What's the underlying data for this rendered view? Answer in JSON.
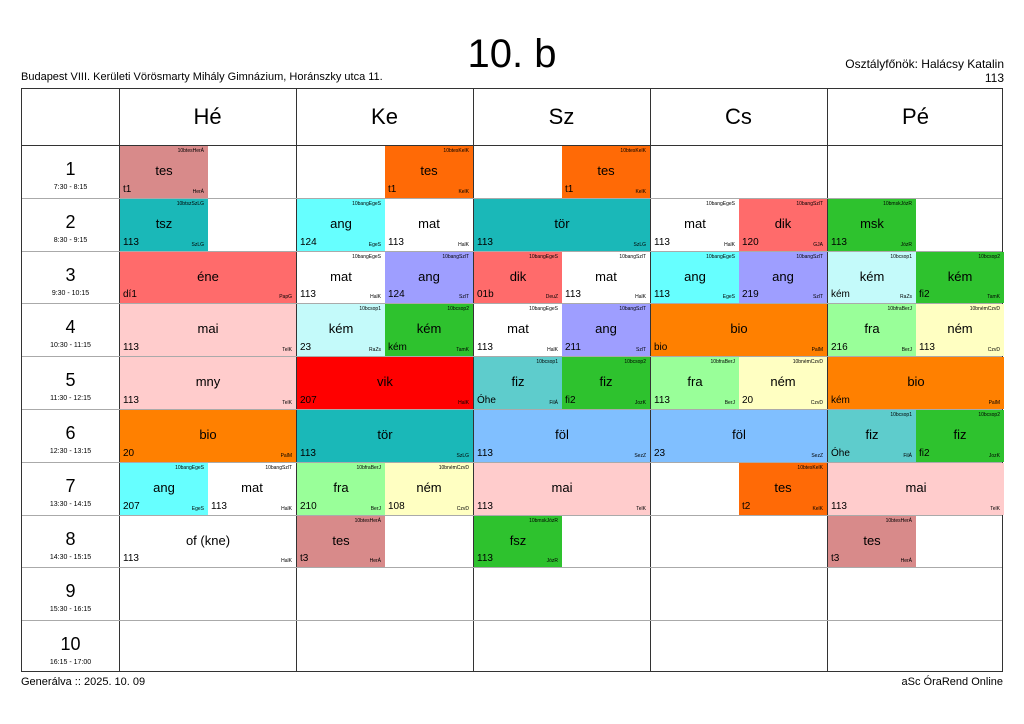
{
  "header": {
    "title": "10. b",
    "school": "Budapest VIII. Kerületi Vörösmarty Mihály Gimnázium, Horánszky utca 11.",
    "head_teacher": "Osztályfőnök: Halácsy Katalin",
    "room": "113"
  },
  "days": [
    "Hé",
    "Ke",
    "Sz",
    "Cs",
    "Pé"
  ],
  "periods": [
    {
      "num": "1",
      "time": "7:30 - 8:15"
    },
    {
      "num": "2",
      "time": "8:30 - 9:15"
    },
    {
      "num": "3",
      "time": "9:30 - 10:15"
    },
    {
      "num": "4",
      "time": "10:30 - 11:15"
    },
    {
      "num": "5",
      "time": "11:30 - 12:15"
    },
    {
      "num": "6",
      "time": "12:30 - 13:15"
    },
    {
      "num": "7",
      "time": "13:30 - 14:15"
    },
    {
      "num": "8",
      "time": "14:30 - 15:15"
    },
    {
      "num": "9",
      "time": "15:30 - 16:15"
    },
    {
      "num": "10",
      "time": "16:15 - 17:00"
    }
  ],
  "lessons": [
    {
      "day": 0,
      "period": 0,
      "half": "L",
      "span": 1,
      "subject": "tes",
      "room": "t1",
      "teacher": "HerÁ",
      "group": "10btesHerÁ",
      "color": "#d88a8a"
    },
    {
      "day": 1,
      "period": 0,
      "half": "R",
      "span": 1,
      "subject": "tes",
      "room": "t1",
      "teacher": "KelK",
      "group": "10btesKelK",
      "color": "#ff6a06"
    },
    {
      "day": 2,
      "period": 0,
      "half": "R",
      "span": 1,
      "subject": "tes",
      "room": "t1",
      "teacher": "KelK",
      "group": "10btesKelK",
      "color": "#ff6a06"
    },
    {
      "day": 0,
      "period": 1,
      "half": "L",
      "span": 1,
      "subject": "tsz",
      "room": "113",
      "teacher": "SzLG",
      "group": "10btszSzLG",
      "color": "#1ab8b8"
    },
    {
      "day": 1,
      "period": 1,
      "half": "L",
      "span": 1,
      "subject": "ang",
      "room": "124",
      "teacher": "EgeS",
      "group": "10bangEgeS",
      "color": "#66ffff"
    },
    {
      "day": 1,
      "period": 1,
      "half": "R",
      "span": 1,
      "subject": "mat",
      "room": "113",
      "teacher": "HalK",
      "group": "",
      "color": "#ffffff"
    },
    {
      "day": 2,
      "period": 1,
      "half": "F",
      "span": 1,
      "subject": "tör",
      "room": "113",
      "teacher": "SzLG",
      "group": "",
      "color": "#1ab8b8"
    },
    {
      "day": 3,
      "period": 1,
      "half": "L",
      "span": 1,
      "subject": "mat",
      "room": "113",
      "teacher": "HalK",
      "group": "10bangEgeS",
      "color": "#ffffff"
    },
    {
      "day": 3,
      "period": 1,
      "half": "R",
      "span": 1,
      "subject": "dik",
      "room": "120",
      "teacher": "GJA",
      "group": "10bangSzlT",
      "color": "#ff6b6b"
    },
    {
      "day": 4,
      "period": 1,
      "half": "L",
      "span": 1,
      "subject": "msk",
      "room": "113",
      "teacher": "JózR",
      "group": "10bmskJózR",
      "color": "#2ec22e"
    },
    {
      "day": 0,
      "period": 2,
      "half": "F",
      "span": 1,
      "subject": "éne",
      "room": "dí1",
      "teacher": "PapG",
      "group": "",
      "color": "#ff6b6b"
    },
    {
      "day": 1,
      "period": 2,
      "half": "L",
      "span": 1,
      "subject": "mat",
      "room": "113",
      "teacher": "HalK",
      "group": "10bangEgeS",
      "color": "#ffffff"
    },
    {
      "day": 1,
      "period": 2,
      "half": "R",
      "span": 1,
      "subject": "ang",
      "room": "124",
      "teacher": "SzlT",
      "group": "10bangSzlT",
      "color": "#9e9eff"
    },
    {
      "day": 2,
      "period": 2,
      "half": "L",
      "span": 1,
      "subject": "dik",
      "room": "01b",
      "teacher": "DeuZ",
      "group": "10bangEgeS",
      "color": "#ff6b6b"
    },
    {
      "day": 2,
      "period": 2,
      "half": "R",
      "span": 1,
      "subject": "mat",
      "room": "113",
      "teacher": "HalK",
      "group": "10bangSzlT",
      "color": "#ffffff"
    },
    {
      "day": 3,
      "period": 2,
      "half": "L",
      "span": 1,
      "subject": "ang",
      "room": "113",
      "teacher": "EgeS",
      "group": "10bangEgeS",
      "color": "#66ffff"
    },
    {
      "day": 3,
      "period": 2,
      "half": "R",
      "span": 1,
      "subject": "ang",
      "room": "219",
      "teacher": "SzlT",
      "group": "10bangSzlT",
      "color": "#9e9eff"
    },
    {
      "day": 4,
      "period": 2,
      "half": "L",
      "span": 1,
      "subject": "kém",
      "room": "kém",
      "teacher": "RaZs",
      "group": "10bcsop1",
      "color": "#c4fafa"
    },
    {
      "day": 4,
      "period": 2,
      "half": "R",
      "span": 1,
      "subject": "kém",
      "room": "fi2",
      "teacher": "TamK",
      "group": "10bcsop2",
      "color": "#2ec22e"
    },
    {
      "day": 0,
      "period": 3,
      "half": "F",
      "span": 1,
      "subject": "mai",
      "room": "113",
      "teacher": "TelK",
      "group": "",
      "color": "#ffcccc"
    },
    {
      "day": 1,
      "period": 3,
      "half": "L",
      "span": 1,
      "subject": "kém",
      "room": "23",
      "teacher": "RaZs",
      "group": "10bcsop1",
      "color": "#c4fafa"
    },
    {
      "day": 1,
      "period": 3,
      "half": "R",
      "span": 1,
      "subject": "kém",
      "room": "kém",
      "teacher": "TamK",
      "group": "10bcsop2",
      "color": "#2ec22e"
    },
    {
      "day": 2,
      "period": 3,
      "half": "L",
      "span": 1,
      "subject": "mat",
      "room": "113",
      "teacher": "HalK",
      "group": "10bangEgeS",
      "color": "#ffffff"
    },
    {
      "day": 2,
      "period": 3,
      "half": "R",
      "span": 1,
      "subject": "ang",
      "room": "211",
      "teacher": "SzlT",
      "group": "10bangSzlT",
      "color": "#9e9eff"
    },
    {
      "day": 3,
      "period": 3,
      "half": "F",
      "span": 1,
      "subject": "bio",
      "room": "bio",
      "teacher": "PalM",
      "group": "",
      "color": "#ff8000"
    },
    {
      "day": 4,
      "period": 3,
      "half": "L",
      "span": 1,
      "subject": "fra",
      "room": "216",
      "teacher": "BerJ",
      "group": "10bfraBerJ",
      "color": "#99ff99"
    },
    {
      "day": 4,
      "period": 3,
      "half": "R",
      "span": 1,
      "subject": "ném",
      "room": "113",
      "teacher": "CzvD",
      "group": "10bnémCzvD",
      "color": "#ffffc2"
    },
    {
      "day": 0,
      "period": 4,
      "half": "F",
      "span": 1,
      "subject": "mny",
      "room": "113",
      "teacher": "TelK",
      "group": "",
      "color": "#ffcccc"
    },
    {
      "day": 1,
      "period": 4,
      "half": "F",
      "span": 1,
      "subject": "vik",
      "room": "207",
      "teacher": "HalK",
      "group": "",
      "color": "#ff0000"
    },
    {
      "day": 2,
      "period": 4,
      "half": "L",
      "span": 1,
      "subject": "fiz",
      "room": "Óhe",
      "teacher": "FilÁ",
      "group": "10bcsop1",
      "color": "#5ecccc"
    },
    {
      "day": 2,
      "period": 4,
      "half": "R",
      "span": 1,
      "subject": "fiz",
      "room": "fi2",
      "teacher": "JozK",
      "group": "10bcsop2",
      "color": "#2ec22e"
    },
    {
      "day": 3,
      "period": 4,
      "half": "L",
      "span": 1,
      "subject": "fra",
      "room": "113",
      "teacher": "BerJ",
      "group": "10bfraBerJ",
      "color": "#99ff99"
    },
    {
      "day": 3,
      "period": 4,
      "half": "R",
      "span": 1,
      "subject": "ném",
      "room": "20",
      "teacher": "CzvD",
      "group": "10bnémCzvD",
      "color": "#ffffc2"
    },
    {
      "day": 4,
      "period": 4,
      "half": "F",
      "span": 1,
      "subject": "bio",
      "room": "kém",
      "teacher": "PalM",
      "group": "",
      "color": "#ff8000"
    },
    {
      "day": 0,
      "period": 5,
      "half": "F",
      "span": 1,
      "subject": "bio",
      "room": "20",
      "teacher": "PalM",
      "group": "",
      "color": "#ff8000"
    },
    {
      "day": 1,
      "period": 5,
      "half": "F",
      "span": 1,
      "subject": "tör",
      "room": "113",
      "teacher": "SzLG",
      "group": "",
      "color": "#1ab8b8"
    },
    {
      "day": 2,
      "period": 5,
      "half": "F",
      "span": 1,
      "subject": "föl",
      "room": "113",
      "teacher": "SezZ",
      "group": "",
      "color": "#80bfff"
    },
    {
      "day": 3,
      "period": 5,
      "half": "F",
      "span": 1,
      "subject": "föl",
      "room": "23",
      "teacher": "SezZ",
      "group": "",
      "color": "#80bfff"
    },
    {
      "day": 4,
      "period": 5,
      "half": "L",
      "span": 1,
      "subject": "fiz",
      "room": "Óhe",
      "teacher": "FilÁ",
      "group": "10bcsop1",
      "color": "#5ecccc"
    },
    {
      "day": 4,
      "period": 5,
      "half": "R",
      "span": 1,
      "subject": "fiz",
      "room": "fi2",
      "teacher": "JozK",
      "group": "10bcsop2",
      "color": "#2ec22e"
    },
    {
      "day": 0,
      "period": 6,
      "half": "L",
      "span": 1,
      "subject": "ang",
      "room": "207",
      "teacher": "EgeS",
      "group": "10bangEgeS",
      "color": "#66ffff"
    },
    {
      "day": 0,
      "period": 6,
      "half": "R",
      "span": 1,
      "subject": "mat",
      "room": "113",
      "teacher": "HalK",
      "group": "10bangSzlT",
      "color": "#ffffff"
    },
    {
      "day": 1,
      "period": 6,
      "half": "L",
      "span": 1,
      "subject": "fra",
      "room": "210",
      "teacher": "BerJ",
      "group": "10bfraBerJ",
      "color": "#99ff99"
    },
    {
      "day": 1,
      "period": 6,
      "half": "R",
      "span": 1,
      "subject": "ném",
      "room": "108",
      "teacher": "CzvD",
      "group": "10bnémCzvD",
      "color": "#ffffc2"
    },
    {
      "day": 2,
      "period": 6,
      "half": "F",
      "span": 1,
      "subject": "mai",
      "room": "113",
      "teacher": "TelK",
      "group": "",
      "color": "#ffcccc"
    },
    {
      "day": 3,
      "period": 6,
      "half": "R",
      "span": 1,
      "subject": "tes",
      "room": "t2",
      "teacher": "KelK",
      "group": "10btesKelK",
      "color": "#ff6a06"
    },
    {
      "day": 4,
      "period": 6,
      "half": "F",
      "span": 1,
      "subject": "mai",
      "room": "113",
      "teacher": "TelK",
      "group": "",
      "color": "#ffcccc"
    },
    {
      "day": 0,
      "period": 7,
      "half": "F",
      "span": 1,
      "subject": "of (kne)",
      "room": "113",
      "teacher": "HalK",
      "group": "",
      "color": "#ffffff"
    },
    {
      "day": 1,
      "period": 7,
      "half": "L",
      "span": 1,
      "subject": "tes",
      "room": "t3",
      "teacher": "HerÁ",
      "group": "10btesHerÁ",
      "color": "#d88a8a"
    },
    {
      "day": 2,
      "period": 7,
      "half": "L",
      "span": 1,
      "subject": "fsz",
      "room": "113",
      "teacher": "JózR",
      "group": "10bmskJózR",
      "color": "#2ec22e"
    },
    {
      "day": 4,
      "period": 7,
      "half": "L",
      "span": 1,
      "subject": "tes",
      "room": "t3",
      "teacher": "HerÁ",
      "group": "10btesHerÁ",
      "color": "#d88a8a"
    }
  ],
  "footer": {
    "generated": "Generálva :: 2025. 10. 09",
    "brand": "aSc ÓraRend Online"
  }
}
